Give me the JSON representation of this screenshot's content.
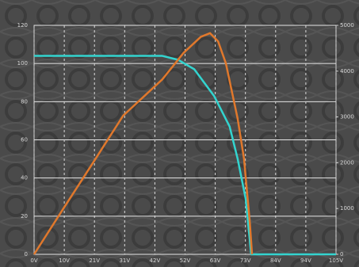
{
  "chart_data": {
    "type": "line",
    "xlim": [
      0,
      105
    ],
    "xticks": [
      {
        "value": 0,
        "label": "0V"
      },
      {
        "value": 10.5,
        "label": "10V"
      },
      {
        "value": 21,
        "label": "21V"
      },
      {
        "value": 31.5,
        "label": "31V"
      },
      {
        "value": 42,
        "label": "42V"
      },
      {
        "value": 52.5,
        "label": "52V"
      },
      {
        "value": 63,
        "label": "63V"
      },
      {
        "value": 73.5,
        "label": "73V"
      },
      {
        "value": 84,
        "label": "84V"
      },
      {
        "value": 94.5,
        "label": "94V"
      },
      {
        "value": 105,
        "label": "105V"
      }
    ],
    "ylim": [
      0,
      120
    ],
    "yticks": [
      0,
      20,
      40,
      60,
      80,
      100,
      120
    ],
    "y2lim": [
      0,
      5000
    ],
    "y2ticks": [
      0,
      1000,
      2000,
      3000,
      4000,
      5000
    ],
    "grid": true,
    "series": [
      {
        "color": "#33d4cf",
        "axis": "y",
        "x": [
          0,
          44.6,
          50,
          55.7,
          62.6,
          68,
          70.8,
          73.6,
          75.5,
          105
        ],
        "values": [
          104,
          104,
          102,
          97,
          83,
          67,
          50,
          29,
          0,
          0
        ]
      },
      {
        "color": "#e0782c",
        "axis": "y2",
        "x": [
          0,
          10,
          21,
          31,
          44.6,
          52,
          58,
          61.2,
          64,
          66.7,
          70.8,
          73,
          75,
          75.8
        ],
        "values": [
          0,
          980,
          2050,
          3030,
          3820,
          4400,
          4750,
          4830,
          4650,
          4170,
          2960,
          2090,
          710,
          0
        ]
      }
    ]
  }
}
